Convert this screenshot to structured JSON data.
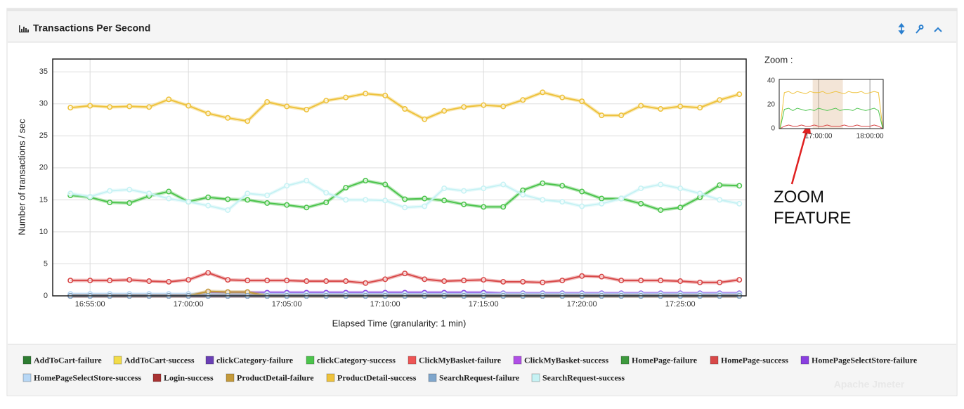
{
  "watermark": "Apache Jmeter",
  "chart_data": [
    {
      "type": "line",
      "title": "Transactions Per Second",
      "x_label": "Elapsed Time (granularity: 1 min)",
      "y_label": "Number of transactions / sec",
      "x": [
        "16:54:00",
        "16:55:00",
        "16:56:00",
        "16:57:00",
        "16:58:00",
        "16:59:00",
        "17:00:00",
        "17:01:00",
        "17:02:00",
        "17:03:00",
        "17:04:00",
        "17:05:00",
        "17:06:00",
        "17:07:00",
        "17:08:00",
        "17:09:00",
        "17:10:00",
        "17:11:00",
        "17:12:00",
        "17:13:00",
        "17:14:00",
        "17:15:00",
        "17:16:00",
        "17:17:00",
        "17:18:00",
        "17:19:00",
        "17:20:00",
        "17:21:00",
        "17:22:00",
        "17:23:00",
        "17:24:00",
        "17:25:00",
        "17:26:00",
        "17:27:00",
        "17:28:00"
      ],
      "xlim": [
        "16:53:06",
        "17:28:21"
      ],
      "xticks": [
        "16:55:00",
        "17:00:00",
        "17:05:00",
        "17:10:00",
        "17:15:00",
        "17:20:00",
        "17:25:00"
      ],
      "ylim": [
        0,
        37
      ],
      "yticks": [
        0,
        5,
        10,
        15,
        20,
        25,
        30,
        35
      ],
      "grid": true,
      "series": [
        {
          "name": "AddToCart-failure",
          "color": "#2e7d32",
          "values": [
            0,
            0,
            0,
            0,
            0,
            0,
            0,
            0,
            0,
            0,
            0,
            0,
            0,
            0,
            0,
            0,
            0,
            0,
            0,
            0,
            0,
            0,
            0,
            0,
            0,
            0,
            0,
            0,
            0,
            0,
            0,
            0,
            0,
            0,
            0
          ]
        },
        {
          "name": "AddToCart-success",
          "color": "#f2dc4a",
          "values": [
            0,
            0,
            0,
            0,
            0,
            0,
            0,
            0,
            0,
            0,
            0,
            0,
            0,
            0,
            0,
            0,
            0,
            0,
            0,
            0,
            0,
            0,
            0,
            0,
            0,
            0,
            0,
            0,
            0,
            0,
            0,
            0,
            0,
            0,
            0
          ]
        },
        {
          "name": "clickCategory-failure",
          "color": "#6a3fb5",
          "values": [
            0,
            0,
            0,
            0,
            0,
            0,
            0,
            0,
            0,
            0,
            0,
            0,
            0,
            0,
            0,
            0,
            0,
            0,
            0,
            0,
            0,
            0,
            0,
            0,
            0,
            0,
            0,
            0,
            0,
            0,
            0,
            0,
            0,
            0,
            0
          ]
        },
        {
          "name": "clickCategory-success",
          "color": "#4cc44c",
          "values": [
            15.7,
            15.4,
            14.6,
            14.5,
            15.6,
            16.3,
            14.7,
            15.4,
            15.1,
            15.0,
            14.5,
            14.2,
            13.8,
            14.6,
            16.9,
            18.0,
            17.4,
            15.1,
            15.2,
            14.9,
            14.3,
            13.9,
            13.9,
            16.5,
            17.6,
            17.2,
            16.3,
            15.2,
            15.2,
            14.4,
            13.4,
            13.8,
            15.4,
            17.3,
            17.2
          ]
        },
        {
          "name": "ClickMyBasket-failure",
          "color": "#ee5555",
          "values": [
            0,
            0,
            0,
            0,
            0,
            0,
            0,
            0,
            0,
            0,
            0,
            0,
            0,
            0,
            0,
            0,
            0,
            0,
            0,
            0,
            0,
            0,
            0,
            0,
            0,
            0,
            0,
            0,
            0,
            0,
            0,
            0,
            0,
            0,
            0
          ]
        },
        {
          "name": "ClickMyBasket-success",
          "color": "#b04fe6",
          "values": [
            0,
            0,
            0,
            0,
            0,
            0,
            0,
            0,
            0,
            0,
            0,
            0,
            0,
            0,
            0,
            0,
            0,
            0,
            0,
            0,
            0,
            0,
            0,
            0,
            0,
            0,
            0,
            0,
            0,
            0,
            0,
            0,
            0,
            0,
            0
          ]
        },
        {
          "name": "HomePage-failure",
          "color": "#3e9a3e",
          "values": [
            0,
            0,
            0,
            0,
            0,
            0,
            0,
            0,
            0,
            0,
            0,
            0,
            0,
            0,
            0,
            0,
            0,
            0,
            0,
            0,
            0,
            0,
            0,
            0,
            0,
            0,
            0,
            0,
            0,
            0,
            0,
            0,
            0,
            0,
            0
          ]
        },
        {
          "name": "HomePage-success",
          "color": "#d84848",
          "values": [
            2.4,
            2.4,
            2.4,
            2.5,
            2.3,
            2.2,
            2.5,
            3.6,
            2.5,
            2.4,
            2.4,
            2.4,
            2.3,
            2.3,
            2.3,
            2.0,
            2.6,
            3.5,
            2.6,
            2.3,
            2.4,
            2.5,
            2.2,
            2.2,
            2.1,
            2.4,
            3.1,
            3.0,
            2.4,
            2.4,
            2.4,
            2.3,
            2.1,
            2.1,
            2.5
          ]
        },
        {
          "name": "HomePageSelectStore-failure",
          "color": "#8a3fe0",
          "values": [
            0,
            0,
            0,
            0,
            0,
            0,
            0,
            0.5,
            0.5,
            0.5,
            0.5,
            0.5,
            0.5,
            0.5,
            0.5,
            0.5,
            0.5,
            0.5,
            0.5,
            0.5,
            0.5,
            0.5,
            0.4,
            0.4,
            0.4,
            0.4,
            0.4,
            0.4,
            0.4,
            0.4,
            0.4,
            0.4,
            0.4,
            0.4,
            0.4
          ]
        },
        {
          "name": "HomePageSelectStore-success",
          "color": "#b7d7f5",
          "values": [
            0.3,
            0.3,
            0.3,
            0.3,
            0.3,
            0.3,
            0.3,
            0.3,
            0.3,
            0.3,
            0.3,
            0.3,
            0.3,
            0.3,
            0.3,
            0.3,
            0.3,
            0.3,
            0.3,
            0.3,
            0.3,
            0.3,
            0.3,
            0.3,
            0.3,
            0.3,
            0.3,
            0.3,
            0.3,
            0.3,
            0.3,
            0.3,
            0.3,
            0.3,
            0.3
          ]
        },
        {
          "name": "Login-success",
          "color": "#a83232",
          "values": [
            0,
            0,
            0,
            0,
            0,
            0,
            0,
            0,
            0,
            0,
            0,
            0,
            0,
            0,
            0,
            0,
            0,
            0,
            0,
            0,
            0,
            0,
            0,
            0,
            0,
            0,
            0,
            0,
            0,
            0,
            0,
            0,
            0,
            0,
            0
          ]
        },
        {
          "name": "ProductDetail-failure",
          "color": "#c49a3a",
          "values": [
            0,
            0,
            0,
            0,
            0,
            0,
            0,
            0.7,
            0.6,
            0.6,
            0,
            0,
            0,
            0,
            0,
            0,
            0,
            0,
            0,
            0,
            0,
            0,
            0,
            0,
            0,
            0,
            0,
            0,
            0,
            0,
            0,
            0,
            0,
            0,
            0
          ]
        },
        {
          "name": "ProductDetail-success",
          "color": "#eec23c",
          "values": [
            29.4,
            29.7,
            29.5,
            29.6,
            29.5,
            30.7,
            29.7,
            28.5,
            27.8,
            27.3,
            30.3,
            29.6,
            29.1,
            30.5,
            31.0,
            31.6,
            31.3,
            29.2,
            27.6,
            28.9,
            29.5,
            29.8,
            29.6,
            30.6,
            31.8,
            31.0,
            30.4,
            28.2,
            28.2,
            29.7,
            29.2,
            29.6,
            29.4,
            30.6,
            31.5
          ]
        },
        {
          "name": "SearchRequest-failure",
          "color": "#7fa6cc",
          "values": [
            0,
            0,
            0,
            0,
            0,
            0,
            0,
            0,
            0,
            0,
            0,
            0,
            0,
            0,
            0,
            0,
            0,
            0,
            0,
            0,
            0,
            0,
            0,
            0,
            0,
            0,
            0,
            0,
            0,
            0,
            0,
            0,
            0,
            0,
            0
          ]
        },
        {
          "name": "SearchRequest-success",
          "color": "#c6f2f4",
          "values": [
            16.0,
            15.5,
            16.4,
            16.6,
            16.0,
            15.2,
            14.7,
            14.1,
            13.4,
            16.0,
            15.7,
            17.2,
            18.0,
            16.1,
            15.0,
            15.0,
            14.9,
            13.8,
            14.0,
            16.8,
            16.4,
            16.8,
            17.4,
            15.8,
            15.0,
            14.7,
            14.0,
            14.4,
            15.2,
            16.8,
            17.4,
            16.8,
            16.0,
            15.0,
            14.4
          ]
        }
      ]
    },
    {
      "type": "line",
      "title": "Zoom :",
      "annotation": "ZOOM FEATURE",
      "x": [
        "16:15:00",
        "16:20:00",
        "16:25:00",
        "16:30:00",
        "16:35:00",
        "16:40:00",
        "16:45:00",
        "16:50:00",
        "16:55:00",
        "17:00:00",
        "17:05:00",
        "17:10:00",
        "17:15:00",
        "17:20:00",
        "17:25:00",
        "17:30:00",
        "17:35:00",
        "17:40:00",
        "17:45:00",
        "17:50:00",
        "17:55:00",
        "18:00:00",
        "18:05:00",
        "18:10:00",
        "18:15:00"
      ],
      "xlim": [
        "16:14:00",
        "18:15:30"
      ],
      "xticks": [
        "17:00:00",
        "18:00:00"
      ],
      "ylim": [
        0,
        41
      ],
      "yticks": [
        0,
        20,
        40
      ],
      "series": [
        {
          "color": "#eec23c",
          "values": [
            0,
            30,
            31,
            29,
            31,
            30,
            29,
            31,
            30,
            30,
            31,
            29,
            30,
            31,
            30,
            29,
            31,
            30,
            30,
            31,
            29,
            30,
            31,
            30,
            0
          ]
        },
        {
          "color": "#4cc44c",
          "values": [
            0,
            16,
            17,
            15,
            17,
            16,
            15,
            16,
            15,
            17,
            16,
            15,
            16,
            17,
            15,
            16,
            16,
            15,
            17,
            16,
            15,
            16,
            17,
            15,
            0
          ]
        },
        {
          "color": "#d84848",
          "values": [
            0,
            2,
            3,
            2,
            2,
            3,
            2,
            2,
            3,
            2,
            2,
            3,
            2,
            2,
            2,
            3,
            2,
            2,
            3,
            2,
            2,
            2,
            3,
            2,
            0
          ]
        }
      ]
    }
  ]
}
